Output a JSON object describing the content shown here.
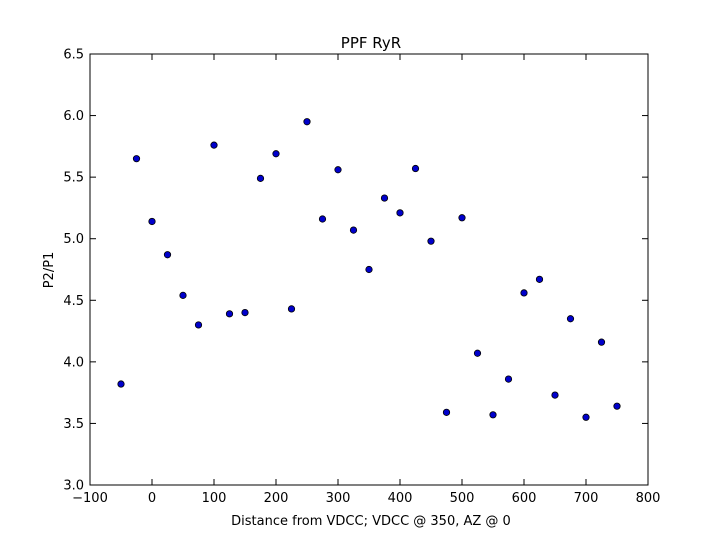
{
  "chart_data": {
    "type": "scatter",
    "title": "PPF RyR",
    "xlabel": "Distance from VDCC; VDCC @ 350, AZ @ 0",
    "ylabel": "P2/P1",
    "xlim": [
      -100,
      800
    ],
    "ylim": [
      3.0,
      6.5
    ],
    "xticks": [
      -100,
      0,
      100,
      200,
      300,
      400,
      500,
      600,
      700,
      800
    ],
    "xtick_labels": [
      "−100",
      "0",
      "100",
      "200",
      "300",
      "400",
      "500",
      "600",
      "700",
      "800"
    ],
    "yticks": [
      3.0,
      3.5,
      4.0,
      4.5,
      5.0,
      5.5,
      6.0,
      6.5
    ],
    "ytick_labels": [
      "3.0",
      "3.5",
      "4.0",
      "4.5",
      "5.0",
      "5.5",
      "6.0",
      "6.5"
    ],
    "grid": false,
    "marker_color": "#0000cc",
    "points": [
      {
        "x": -50,
        "y": 3.82
      },
      {
        "x": -25,
        "y": 5.65
      },
      {
        "x": 0,
        "y": 5.14
      },
      {
        "x": 25,
        "y": 4.87
      },
      {
        "x": 50,
        "y": 4.54
      },
      {
        "x": 75,
        "y": 4.3
      },
      {
        "x": 100,
        "y": 5.76
      },
      {
        "x": 125,
        "y": 4.39
      },
      {
        "x": 150,
        "y": 4.4
      },
      {
        "x": 175,
        "y": 5.49
      },
      {
        "x": 200,
        "y": 5.69
      },
      {
        "x": 225,
        "y": 4.43
      },
      {
        "x": 250,
        "y": 5.95
      },
      {
        "x": 275,
        "y": 5.16
      },
      {
        "x": 300,
        "y": 5.56
      },
      {
        "x": 325,
        "y": 5.07
      },
      {
        "x": 350,
        "y": 4.75
      },
      {
        "x": 375,
        "y": 5.33
      },
      {
        "x": 400,
        "y": 5.21
      },
      {
        "x": 425,
        "y": 5.57
      },
      {
        "x": 450,
        "y": 4.98
      },
      {
        "x": 475,
        "y": 3.59
      },
      {
        "x": 500,
        "y": 5.17
      },
      {
        "x": 525,
        "y": 4.07
      },
      {
        "x": 550,
        "y": 3.57
      },
      {
        "x": 575,
        "y": 3.86
      },
      {
        "x": 600,
        "y": 4.56
      },
      {
        "x": 625,
        "y": 4.67
      },
      {
        "x": 650,
        "y": 3.73
      },
      {
        "x": 675,
        "y": 4.35
      },
      {
        "x": 700,
        "y": 3.55
      },
      {
        "x": 725,
        "y": 4.16
      },
      {
        "x": 750,
        "y": 3.64
      }
    ]
  }
}
